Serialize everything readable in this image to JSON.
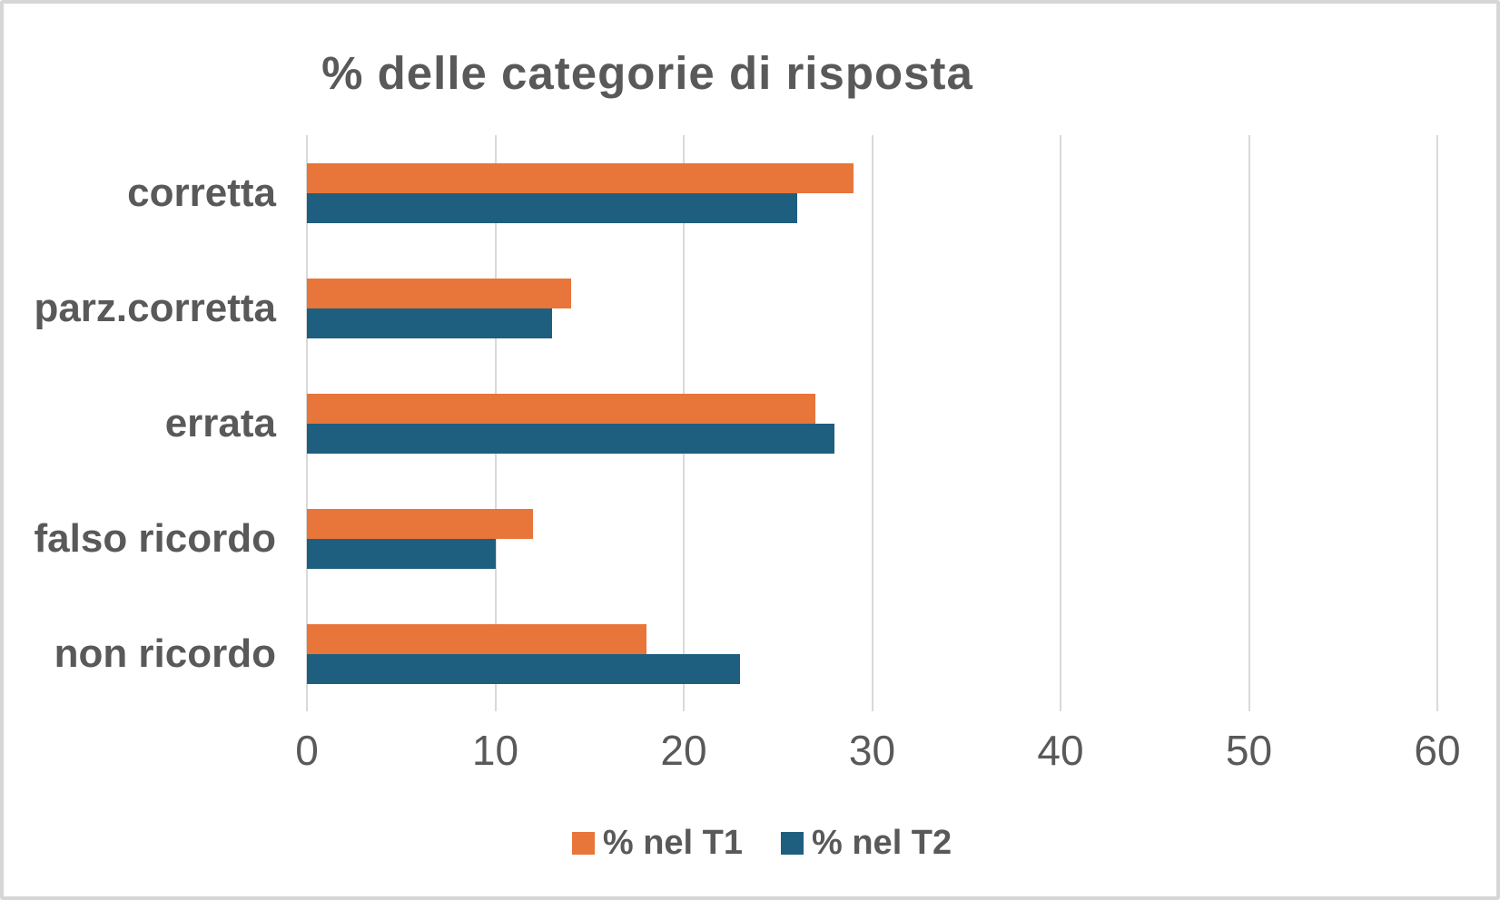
{
  "chart_data": {
    "type": "bar",
    "orientation": "horizontal",
    "title": "% delle categorie di risposta",
    "categories": [
      "corretta",
      "parz.corretta",
      "errata",
      "falso ricordo",
      "non ricordo"
    ],
    "series": [
      {
        "name": "% nel T1",
        "color": "#E8753A",
        "values": [
          29,
          14,
          27,
          12,
          18
        ]
      },
      {
        "name": "% nel T2",
        "color": "#1E5F80",
        "values": [
          26,
          13,
          28,
          10,
          23
        ]
      }
    ],
    "xlabel": "",
    "ylabel": "",
    "xlim": [
      0,
      60
    ],
    "xticks": [
      0,
      10,
      20,
      30,
      40,
      50,
      60
    ],
    "grid": "vertical gridlines on",
    "legend_position": "bottom",
    "text_color": "#595959",
    "gridline_color": "#D9D9D9",
    "background_color": "#FFFFFF",
    "border_color": "#D6D6D6"
  }
}
